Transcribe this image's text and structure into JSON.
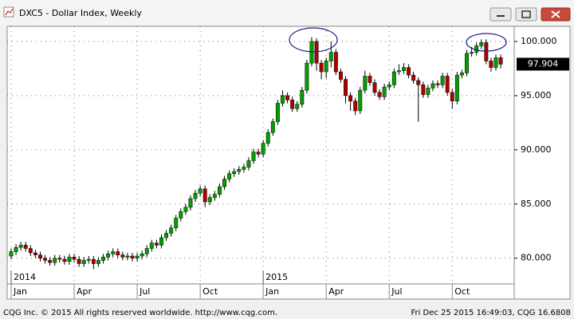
{
  "chart_data": {
    "type": "candlestick",
    "title": "DXC5 - Dollar Index, Weekly",
    "footer_left": "CQG Inc. © 2015 All rights reserved worldwide. http://www.cqg.com.",
    "footer_right": "Fri Dec 25 2015 16:49:03, CQG 16.6808",
    "categories": [
      "Jan",
      null,
      null,
      null,
      null,
      null,
      null,
      null,
      null,
      null,
      null,
      null,
      null,
      "Apr",
      null,
      null,
      null,
      null,
      null,
      null,
      null,
      null,
      null,
      null,
      null,
      null,
      "Jul",
      null,
      null,
      null,
      null,
      null,
      null,
      null,
      null,
      null,
      null,
      null,
      null,
      "Oct",
      null,
      null,
      null,
      null,
      null,
      null,
      null,
      null,
      null,
      null,
      null,
      null,
      "Jan",
      null,
      null,
      null,
      null,
      null,
      null,
      null,
      null,
      null,
      null,
      null,
      null,
      "Apr",
      null,
      null,
      null,
      null,
      null,
      null,
      null,
      null,
      null,
      null,
      null,
      null,
      "Jul",
      null,
      null,
      null,
      null,
      null,
      null,
      null,
      null,
      null,
      null,
      null,
      null,
      "Oct",
      null,
      null,
      null,
      null,
      null,
      null,
      null,
      null,
      null,
      null
    ],
    "year_labels": [
      "2014",
      null,
      null,
      null,
      null,
      null,
      null,
      null,
      null,
      null,
      null,
      null,
      null,
      null,
      null,
      null,
      null,
      null,
      null,
      null,
      null,
      null,
      null,
      null,
      null,
      null,
      null,
      null,
      null,
      null,
      null,
      null,
      null,
      null,
      null,
      null,
      null,
      null,
      null,
      null,
      null,
      null,
      null,
      null,
      null,
      null,
      null,
      null,
      null,
      null,
      null,
      null,
      "2015",
      null,
      null,
      null,
      null,
      null,
      null,
      null,
      null,
      null,
      null,
      null,
      null,
      null,
      null,
      null,
      null,
      null,
      null,
      null,
      null,
      null,
      null,
      null,
      null,
      null,
      null,
      null,
      null,
      null,
      null,
      null,
      null,
      null,
      null,
      null,
      null,
      null,
      null,
      null,
      null,
      null,
      null,
      null,
      null,
      null,
      null,
      null,
      null,
      null
    ],
    "open": [
      80.2,
      80.6,
      81.0,
      81.2,
      80.9,
      80.5,
      80.3,
      80.0,
      79.8,
      79.6,
      80.0,
      79.9,
      79.7,
      80.1,
      79.9,
      79.5,
      79.8,
      79.9,
      79.5,
      79.8,
      80.1,
      80.4,
      80.6,
      80.3,
      80.1,
      80.2,
      80.0,
      80.2,
      80.4,
      80.9,
      81.4,
      81.2,
      81.9,
      82.3,
      82.8,
      83.7,
      84.3,
      84.7,
      85.5,
      86.0,
      86.4,
      85.2,
      85.6,
      85.9,
      86.6,
      87.3,
      87.8,
      88.0,
      88.2,
      88.4,
      89.0,
      89.8,
      89.6,
      90.6,
      91.6,
      92.6,
      94.3,
      95.0,
      94.6,
      93.8,
      94.2,
      95.5,
      98.0,
      100.0,
      98.0,
      97.2,
      98.2,
      99.0,
      97.2,
      96.5,
      95.0,
      94.5,
      93.6,
      95.5,
      96.8,
      96.2,
      95.3,
      94.9,
      95.8,
      96.0,
      97.2,
      97.3,
      97.6,
      96.9,
      96.4,
      96.0,
      95.1,
      95.7,
      96.1,
      96.0,
      96.8,
      95.3,
      94.5,
      96.9,
      97.1,
      98.9,
      99.0,
      99.6,
      99.9,
      98.2,
      97.6,
      98.5
    ],
    "high": [
      80.9,
      81.3,
      81.5,
      81.5,
      81.2,
      80.8,
      80.6,
      80.3,
      80.1,
      80.3,
      80.3,
      80.2,
      80.4,
      80.4,
      80.2,
      80.1,
      80.2,
      80.2,
      80.1,
      80.4,
      80.7,
      80.9,
      80.9,
      80.6,
      80.5,
      80.5,
      80.5,
      80.7,
      81.2,
      81.7,
      81.7,
      82.2,
      82.6,
      83.1,
      84.0,
      84.6,
      85.0,
      85.8,
      86.3,
      86.7,
      86.7,
      85.9,
      86.2,
      86.9,
      87.6,
      88.1,
      88.3,
      88.5,
      88.7,
      89.3,
      90.1,
      90.1,
      90.9,
      91.9,
      92.9,
      94.6,
      95.5,
      95.3,
      94.9,
      94.5,
      95.8,
      98.3,
      100.4,
      100.3,
      98.3,
      98.5,
      100.0,
      99.3,
      97.5,
      96.8,
      95.3,
      94.8,
      95.8,
      97.3,
      97.1,
      96.5,
      95.6,
      96.1,
      96.3,
      97.5,
      97.9,
      98.0,
      97.9,
      97.2,
      96.7,
      96.3,
      96.0,
      96.4,
      96.4,
      97.1,
      97.1,
      95.6,
      97.2,
      97.4,
      99.2,
      99.5,
      99.9,
      100.2,
      100.2,
      98.5,
      98.8,
      98.8
    ],
    "low": [
      79.9,
      80.3,
      80.7,
      80.6,
      80.2,
      80.0,
      79.7,
      79.5,
      79.3,
      79.3,
      79.6,
      79.4,
      79.4,
      79.6,
      79.2,
      79.2,
      79.5,
      79.0,
      79.2,
      79.5,
      79.8,
      80.1,
      80.0,
      79.8,
      79.8,
      79.7,
      79.7,
      79.9,
      80.1,
      80.6,
      80.9,
      80.9,
      81.6,
      82.0,
      82.5,
      83.4,
      84.0,
      84.4,
      85.2,
      85.7,
      84.7,
      84.9,
      85.3,
      85.6,
      86.3,
      87.0,
      87.5,
      87.7,
      87.9,
      88.1,
      88.7,
      89.3,
      89.3,
      90.3,
      91.3,
      92.3,
      94.0,
      94.3,
      93.5,
      93.5,
      93.9,
      95.2,
      97.7,
      97.3,
      96.5,
      96.6,
      97.6,
      96.9,
      96.2,
      94.3,
      93.6,
      93.2,
      93.3,
      95.2,
      95.9,
      95.0,
      94.6,
      94.6,
      95.5,
      95.7,
      96.9,
      97.0,
      96.6,
      96.1,
      92.6,
      94.8,
      94.8,
      95.4,
      95.7,
      95.7,
      95.0,
      93.8,
      94.2,
      96.6,
      96.8,
      98.6,
      98.7,
      99.3,
      97.9,
      97.2,
      97.3,
      97.5
    ],
    "close": [
      80.6,
      81.0,
      81.2,
      80.9,
      80.5,
      80.3,
      80.0,
      79.8,
      79.6,
      80.0,
      79.9,
      79.7,
      80.1,
      79.9,
      79.5,
      79.8,
      79.9,
      79.5,
      79.8,
      80.1,
      80.4,
      80.6,
      80.3,
      80.1,
      80.2,
      80.0,
      80.2,
      80.4,
      80.9,
      81.4,
      81.2,
      81.9,
      82.3,
      82.8,
      83.7,
      84.3,
      84.7,
      85.5,
      86.0,
      86.4,
      85.2,
      85.6,
      85.9,
      86.6,
      87.3,
      87.8,
      88.0,
      88.2,
      88.4,
      89.0,
      89.8,
      89.6,
      90.6,
      91.6,
      92.6,
      94.3,
      95.0,
      94.6,
      93.8,
      94.2,
      95.5,
      98.0,
      100.0,
      98.0,
      97.2,
      98.2,
      99.0,
      97.2,
      96.5,
      95.0,
      94.5,
      93.6,
      95.5,
      96.8,
      96.2,
      95.3,
      94.9,
      95.8,
      96.0,
      97.2,
      97.3,
      97.6,
      96.9,
      96.4,
      96.0,
      95.1,
      95.7,
      96.1,
      96.0,
      96.8,
      95.3,
      94.5,
      96.9,
      97.1,
      98.9,
      99.0,
      99.6,
      99.9,
      98.2,
      97.6,
      98.5,
      97.904
    ],
    "up_color": "#00a000",
    "down_color": "#b00000",
    "last_price": {
      "value": 97.904,
      "label": "97.904"
    },
    "ylim": [
      77.7,
      101.25
    ],
    "yticks": [
      {
        "value": 80,
        "label": "80.000"
      },
      {
        "value": 85,
        "label": "85.000"
      },
      {
        "value": 90,
        "label": "90.000"
      },
      {
        "value": 95,
        "label": "95.000"
      },
      {
        "value": 100,
        "label": "100.000"
      }
    ],
    "grid": true
  }
}
